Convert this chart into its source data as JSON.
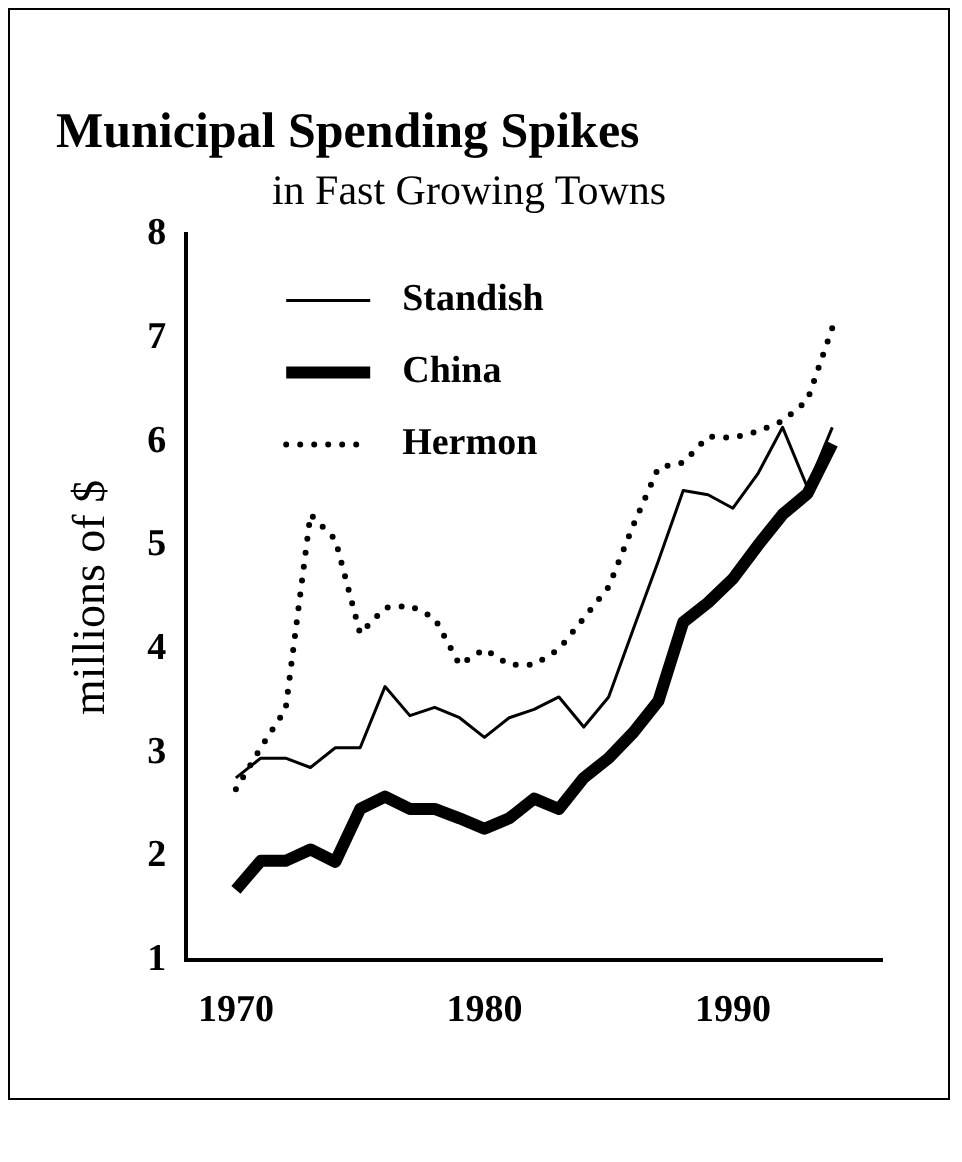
{
  "chart_data": {
    "type": "line",
    "title": "Municipal Spending Spikes",
    "subtitle": "in Fast Growing Towns",
    "ylabel": "millions of $",
    "x": [
      1970,
      1971,
      1972,
      1973,
      1974,
      1975,
      1976,
      1977,
      1978,
      1979,
      1980,
      1981,
      1982,
      1983,
      1984,
      1985,
      1986,
      1987,
      1988,
      1989,
      1990,
      1991,
      1992,
      1993,
      1994
    ],
    "series": [
      {
        "name": "Standish",
        "color": "#000000",
        "line_style": "solid",
        "values": [
          2.76,
          2.95,
          2.95,
          2.86,
          3.05,
          3.05,
          3.64,
          3.36,
          3.44,
          3.34,
          3.15,
          3.34,
          3.42,
          3.54,
          3.25,
          3.54,
          4.2,
          4.85,
          5.53,
          5.49,
          5.36,
          5.69,
          6.14,
          5.56,
          6.14
        ]
      },
      {
        "name": "China",
        "color": "#000000",
        "line_style": "solid",
        "values": [
          1.68,
          1.96,
          1.96,
          2.07,
          1.95,
          2.46,
          2.58,
          2.46,
          2.46,
          2.37,
          2.27,
          2.37,
          2.56,
          2.46,
          2.76,
          2.95,
          3.2,
          3.5,
          4.26,
          4.45,
          4.68,
          5.0,
          5.3,
          5.5,
          5.98
        ]
      },
      {
        "name": "Hermon",
        "color": "#000000",
        "line_style": "dotted",
        "values": [
          2.65,
          3.05,
          3.42,
          5.3,
          5.06,
          4.15,
          4.4,
          4.42,
          4.3,
          3.85,
          4.0,
          3.85,
          3.85,
          4.0,
          4.3,
          4.6,
          5.2,
          5.75,
          5.8,
          6.05,
          6.04,
          6.1,
          6.2,
          6.4,
          7.1
        ]
      }
    ],
    "xlim": [
      1968,
      1996
    ],
    "xticks": [
      1970,
      1980,
      1990
    ],
    "ylim": [
      1,
      8
    ],
    "yticks": [
      1,
      2,
      3,
      4,
      5,
      6,
      7,
      8
    ],
    "grid": false,
    "legend": "top left",
    "marker": "none"
  }
}
